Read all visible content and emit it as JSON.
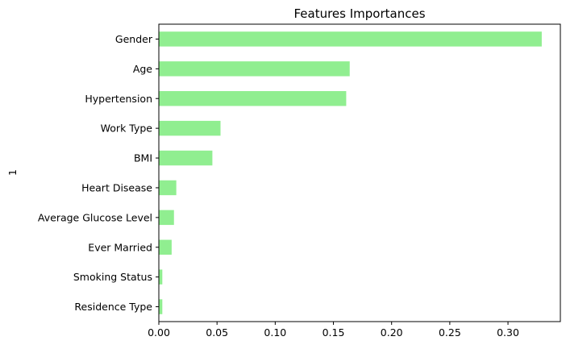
{
  "chart_data": {
    "type": "bar",
    "orientation": "horizontal",
    "title": "Features Importances",
    "xlabel": "",
    "ylabel": "1",
    "categories": [
      "Residence Type",
      "Smoking Status",
      "Ever Married",
      "Average Glucose Level",
      "Heart Disease",
      "BMI",
      "Work Type",
      "Hypertension",
      "Age",
      "Gender"
    ],
    "values": [
      0.003,
      0.003,
      0.011,
      0.013,
      0.015,
      0.046,
      0.053,
      0.161,
      0.164,
      0.329
    ],
    "xlim": [
      0,
      0.345
    ],
    "xticks": [
      0.0,
      0.05,
      0.1,
      0.15,
      0.2,
      0.25,
      0.3
    ],
    "xtick_labels": [
      "0.00",
      "0.05",
      "0.10",
      "0.15",
      "0.20",
      "0.25",
      "0.30"
    ],
    "bar_color": "#90ee90",
    "grid": false,
    "legend": "none"
  }
}
